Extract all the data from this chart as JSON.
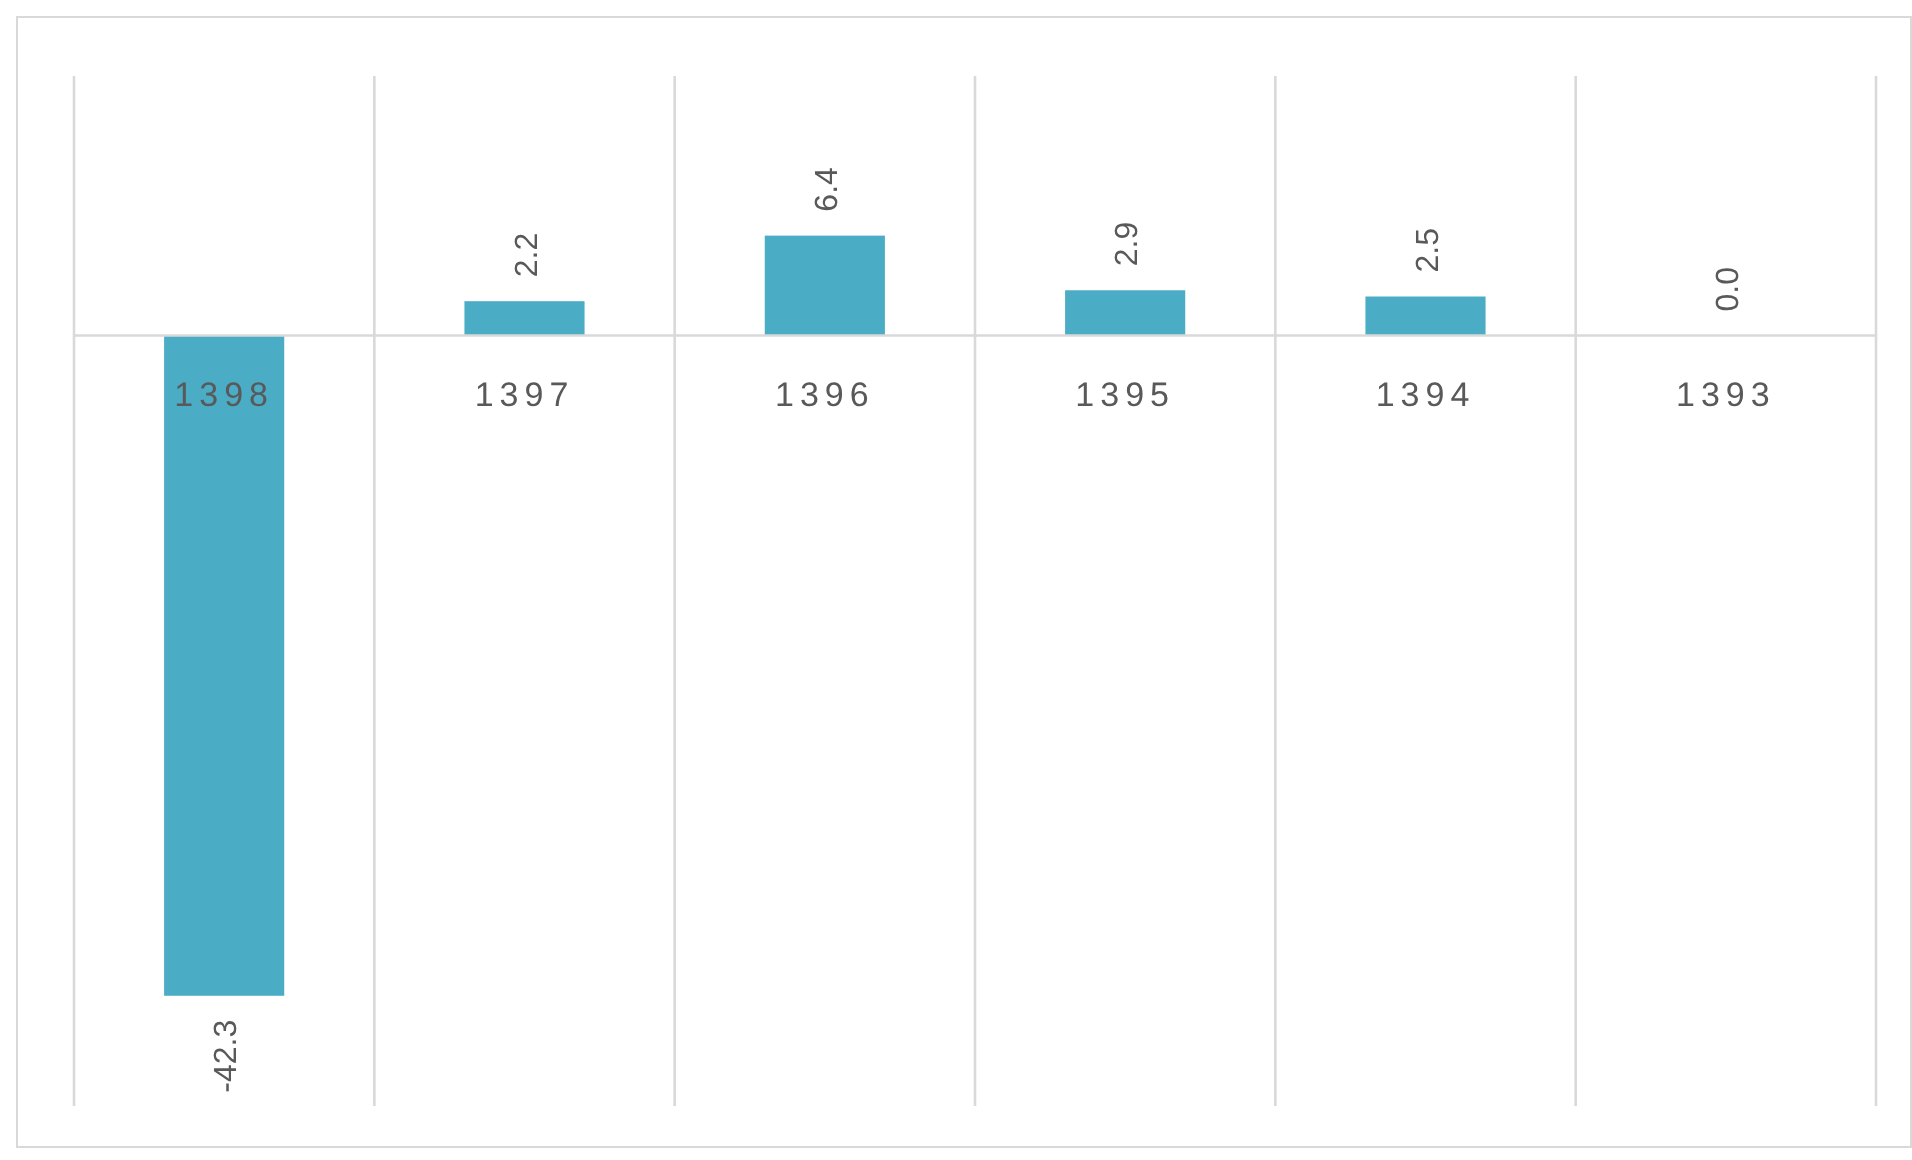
{
  "chart_data": {
    "type": "bar",
    "categories": [
      "1398",
      "1397",
      "1396",
      "1395",
      "1394",
      "1393"
    ],
    "values": [
      -42.3,
      2.2,
      6.4,
      2.9,
      2.5,
      0.0
    ],
    "value_labels": [
      "-42.3",
      "2.2",
      "6.4",
      "2.9",
      "2.5",
      "0.0"
    ],
    "color": "#4bacc6",
    "grid": "x"
  }
}
